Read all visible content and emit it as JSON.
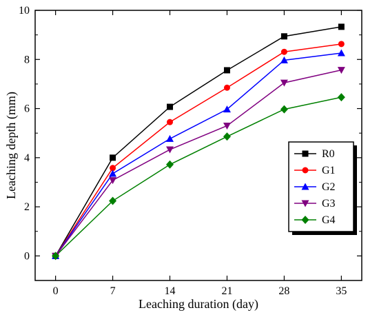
{
  "chart_data": {
    "type": "line",
    "title": "",
    "xlabel": "Leaching duration (day)",
    "ylabel": "Leaching depth (mm)",
    "x": [
      0,
      7,
      14,
      21,
      28,
      35
    ],
    "xlim": [
      -2.5,
      37.5
    ],
    "ylim": [
      -1,
      10
    ],
    "xticks": [
      0,
      7,
      14,
      21,
      28,
      35
    ],
    "yticks": [
      0,
      2,
      4,
      6,
      8,
      10
    ],
    "grid": false,
    "legend_position": "right",
    "series": [
      {
        "name": "R0",
        "color": "#000000",
        "marker": "square",
        "values": [
          0,
          4.0,
          6.07,
          7.56,
          8.94,
          9.33
        ]
      },
      {
        "name": "G1",
        "color": "#ff0000",
        "marker": "circle",
        "values": [
          0,
          3.58,
          5.45,
          6.85,
          8.31,
          8.63
        ]
      },
      {
        "name": "G2",
        "color": "#0000ff",
        "marker": "triangle-up",
        "values": [
          0,
          3.35,
          4.77,
          5.97,
          7.97,
          8.26
        ]
      },
      {
        "name": "G3",
        "color": "#800080",
        "marker": "triangle-down",
        "values": [
          0,
          3.08,
          4.33,
          5.3,
          7.05,
          7.57
        ]
      },
      {
        "name": "G4",
        "color": "#008000",
        "marker": "diamond",
        "values": [
          0,
          2.24,
          3.72,
          4.86,
          5.97,
          6.46
        ]
      }
    ]
  }
}
